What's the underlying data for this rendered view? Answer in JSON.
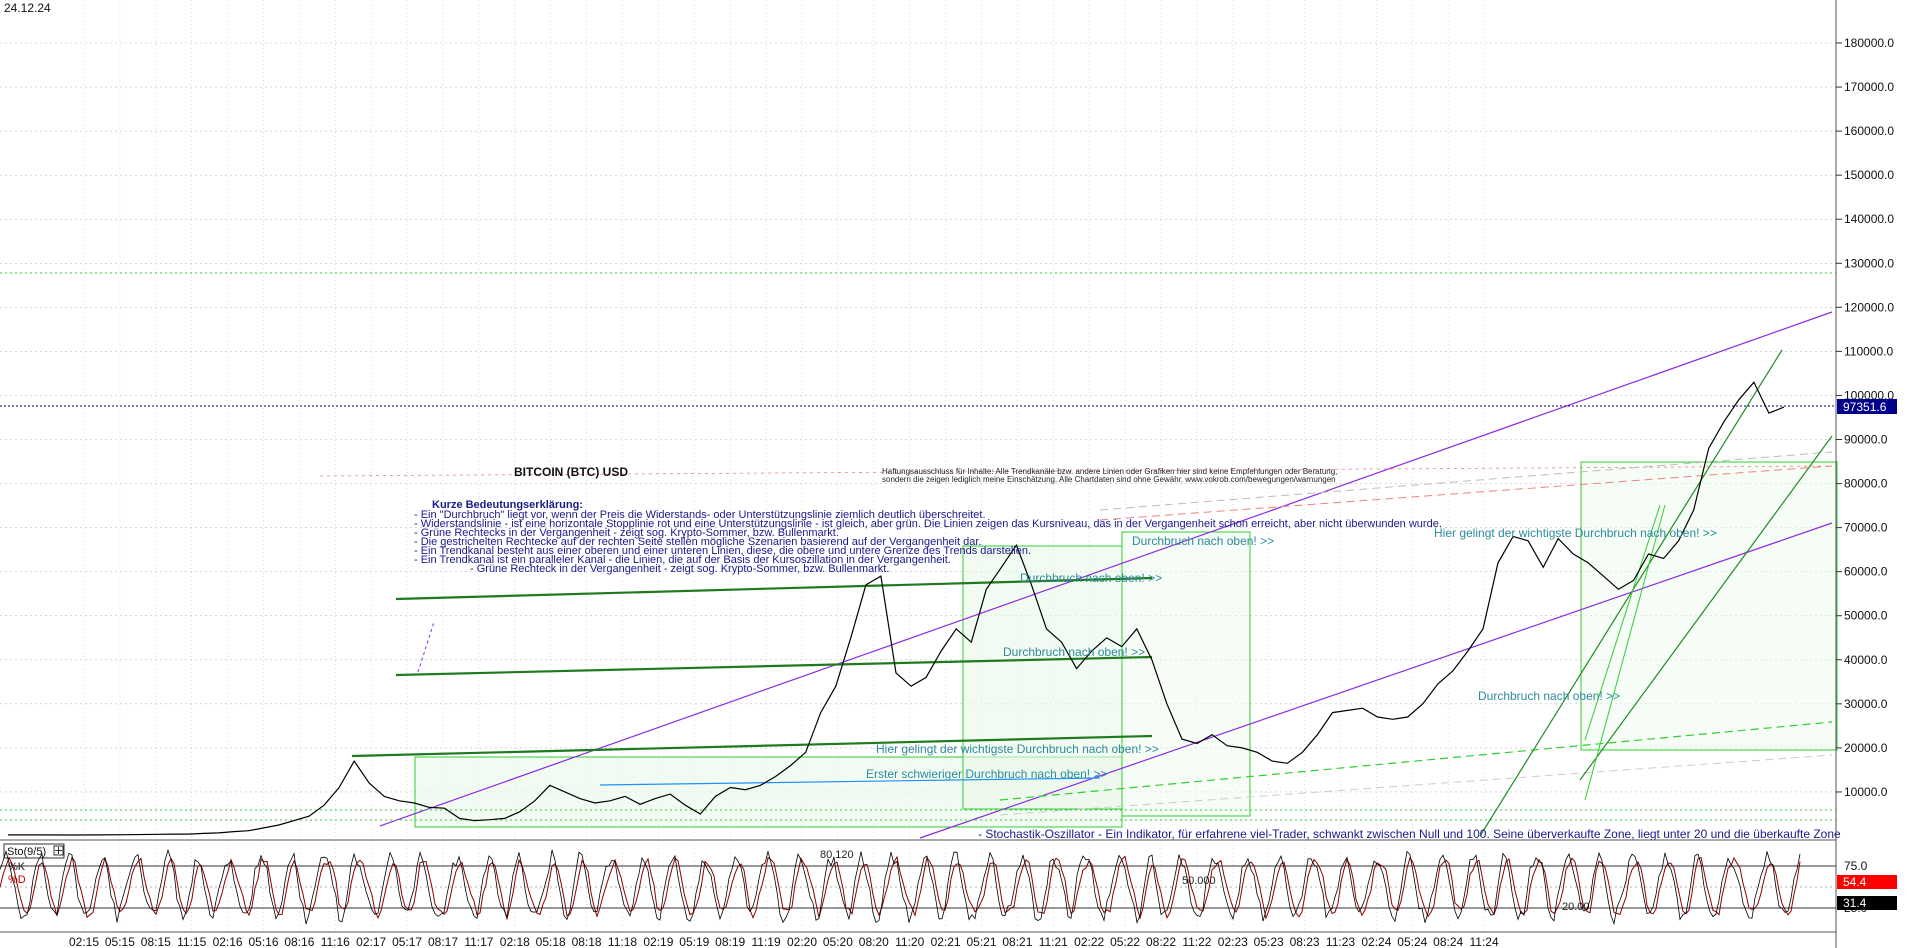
{
  "header": {
    "date_label": "24.12.24"
  },
  "chart_data": {
    "type": "line",
    "title": "BITCOIN (BTC) USD",
    "xlabel": "",
    "ylabel": "",
    "ylim": [
      0,
      190000
    ],
    "y_ticks": [
      10000,
      20000,
      30000,
      40000,
      50000,
      60000,
      70000,
      80000,
      90000,
      100000,
      110000,
      120000,
      130000,
      140000,
      150000,
      160000,
      170000,
      180000
    ],
    "y_tick_labels": [
      "10000.0",
      "20000.0",
      "30000.0",
      "40000.0",
      "50000.0",
      "60000.0",
      "70000.0",
      "80000.0",
      "90000.0",
      "100000.0",
      "110000.0",
      "120000.0",
      "130000.0",
      "140000.0",
      "150000.0",
      "160000.0",
      "170000.0",
      "180000.0"
    ],
    "x_tick_labels": [
      "02:15",
      "05:15",
      "08:15",
      "11:15",
      "02:16",
      "05:16",
      "08:16",
      "11:16",
      "02:17",
      "05:17",
      "08:17",
      "11:17",
      "02:18",
      "05:18",
      "08:18",
      "11:18",
      "02:19",
      "05:19",
      "08:19",
      "11:19",
      "02:20",
      "05:20",
      "08:20",
      "11:20",
      "02:21",
      "05:21",
      "08:21",
      "11:21",
      "02:22",
      "05:22",
      "08:22",
      "11:22",
      "02:23",
      "05:23",
      "08:23",
      "11:23",
      "02:24",
      "05:24",
      "08:24",
      "11:24"
    ],
    "grid": true,
    "legend": "none",
    "series": [
      {
        "color": "#000000",
        "x": [
          0,
          2,
          4,
          6,
          8,
          10,
          11,
          12,
          13,
          14,
          15,
          16,
          18,
          20,
          21,
          22,
          23,
          24,
          25,
          26,
          27,
          28,
          29,
          30,
          31,
          32,
          33,
          34,
          35,
          36,
          37,
          38,
          39,
          40,
          41,
          42,
          43,
          44,
          45,
          46,
          47,
          48,
          49,
          50,
          51,
          52,
          53,
          54,
          55,
          56,
          57,
          58,
          59,
          60,
          61,
          62,
          63,
          64,
          65,
          66,
          67,
          68,
          69,
          70,
          71,
          72,
          73,
          74,
          75,
          76,
          77,
          78,
          79,
          80,
          81,
          82,
          83,
          84,
          85,
          86,
          87,
          88,
          89,
          90,
          91,
          92,
          93,
          94,
          95,
          96,
          97,
          98,
          99,
          100,
          101,
          102,
          103,
          104,
          105,
          106,
          107,
          108,
          109,
          110,
          111,
          112,
          113,
          114,
          115,
          116,
          117,
          118
        ],
        "y": [
          250,
          240,
          230,
          260,
          300,
          380,
          420,
          440,
          600,
          700,
          1000,
          1200,
          2500,
          4500,
          7000,
          11000,
          17000,
          12000,
          9000,
          8000,
          7500,
          6500,
          6300,
          4000,
          3500,
          3700,
          4000,
          5500,
          8000,
          11500,
          10000,
          8500,
          7500,
          8000,
          9000,
          7200,
          8500,
          9500,
          7000,
          5000,
          9000,
          11000,
          10500,
          11500,
          13500,
          16000,
          19000,
          28000,
          34000,
          45000,
          57000,
          59000,
          37000,
          34000,
          36000,
          42000,
          47000,
          44000,
          56000,
          61000,
          66000,
          57000,
          47000,
          44000,
          38000,
          42000,
          45000,
          43000,
          47000,
          40000,
          30000,
          22000,
          21000,
          23000,
          20500,
          20000,
          19000,
          17000,
          16500,
          19000,
          23000,
          28000,
          28500,
          29000,
          27000,
          26500,
          27000,
          30000,
          34500,
          37500,
          42000,
          47000,
          62000,
          68000,
          67000,
          61000,
          67500,
          64000,
          62000,
          59000,
          56000,
          58000,
          64000,
          63000,
          67000,
          74000,
          88000,
          94000,
          99000,
          103000,
          96000,
          97351
        ]
      }
    ]
  },
  "price_tag": {
    "value": "97351.6",
    "color": "#00008b"
  },
  "annotations": {
    "header_left": "Kurze Bedeutungserklärung:",
    "lines": [
      "- Ein \"Durchbruch\" liegt vor, wenn der Preis die Widerstands- oder Unterstützungslinie ziemlich deutlich überschreitet.",
      "- Widerstandslinie - ist eine horizontale Stopplinie rot und eine Unterstützungslinie - ist gleich, aber grün. Die Linien zeigen das Kursniveau, das in der Vergangenheit schon erreicht, aber nicht überwunden wurde.",
      "- Grüne Rechtecks in der Vergangenheit - zeigt sog. Krypto-Sommer, bzw. Bullenmarkt.",
      "- Die gestrichelten Rechtecke auf der rechten Seite stellen mögliche Szenarien basierend auf der Vergangenheit dar.",
      "- Ein Trendkanal besteht aus einer oberen und einer unteren Linien, diese, die obere und untere Grenze des Trends darstellen.",
      "- Ein Trendkanal ist ein paralleler Kanal - die Linien, die auf der Basis der Kursoszillation in der Vergangenheit.",
      "- Grüne Rechteck in der Vergangenheit - zeigt sog. Krypto-Sommer, bzw. Bullenmarkt."
    ],
    "disclaimer_1": "Haftungsausschluss für Inhalte: Alle Trendkanäle bzw. andere Linien oder Grafiken hier sind keine Empfehlungen oder Beratung,",
    "disclaimer_2": "sondern die zeigen lediglich meine Einschätzung. Alle Chartdaten sind ohne Gewähr. www.vokrob.com/bewegungen/warnungen",
    "durchbruch_1": "Durchbruch nach oben! >>",
    "durchbruch_2": "Durchbruch nach oben! >>",
    "durchbruch_3": "Durchbruch nach oben! >>",
    "durchbruch_4": "Durchbruch nach oben! >>",
    "wichtigste_1": "Hier gelingt der wichtigste Durchbruch nach oben! >>",
    "wichtigste_2": "Hier gelingt der wichtigste Durchbruch nach oben! >>",
    "erster": "Erster schwieriger Durchbruch nach oben! >>",
    "stoch_note": "- Stochastik-Oszillator - Ein Indikator, für erfahrene viel-Trader, schwankt zwischen Null und 100. Seine überverkaufte Zone, liegt unter 20 und die überkaufte Zone"
  },
  "oscillator": {
    "title": "Sto(9/5)",
    "k_label": "%K",
    "d_label": "%D",
    "ticks": [
      "75.0",
      "25.0"
    ],
    "k_value": "54.4",
    "d_value": "31.4",
    "k_value_color": "#ff0000",
    "d_value_color": "#000000",
    "inline_labels": [
      "80.120",
      "50.000",
      "20.00"
    ]
  }
}
